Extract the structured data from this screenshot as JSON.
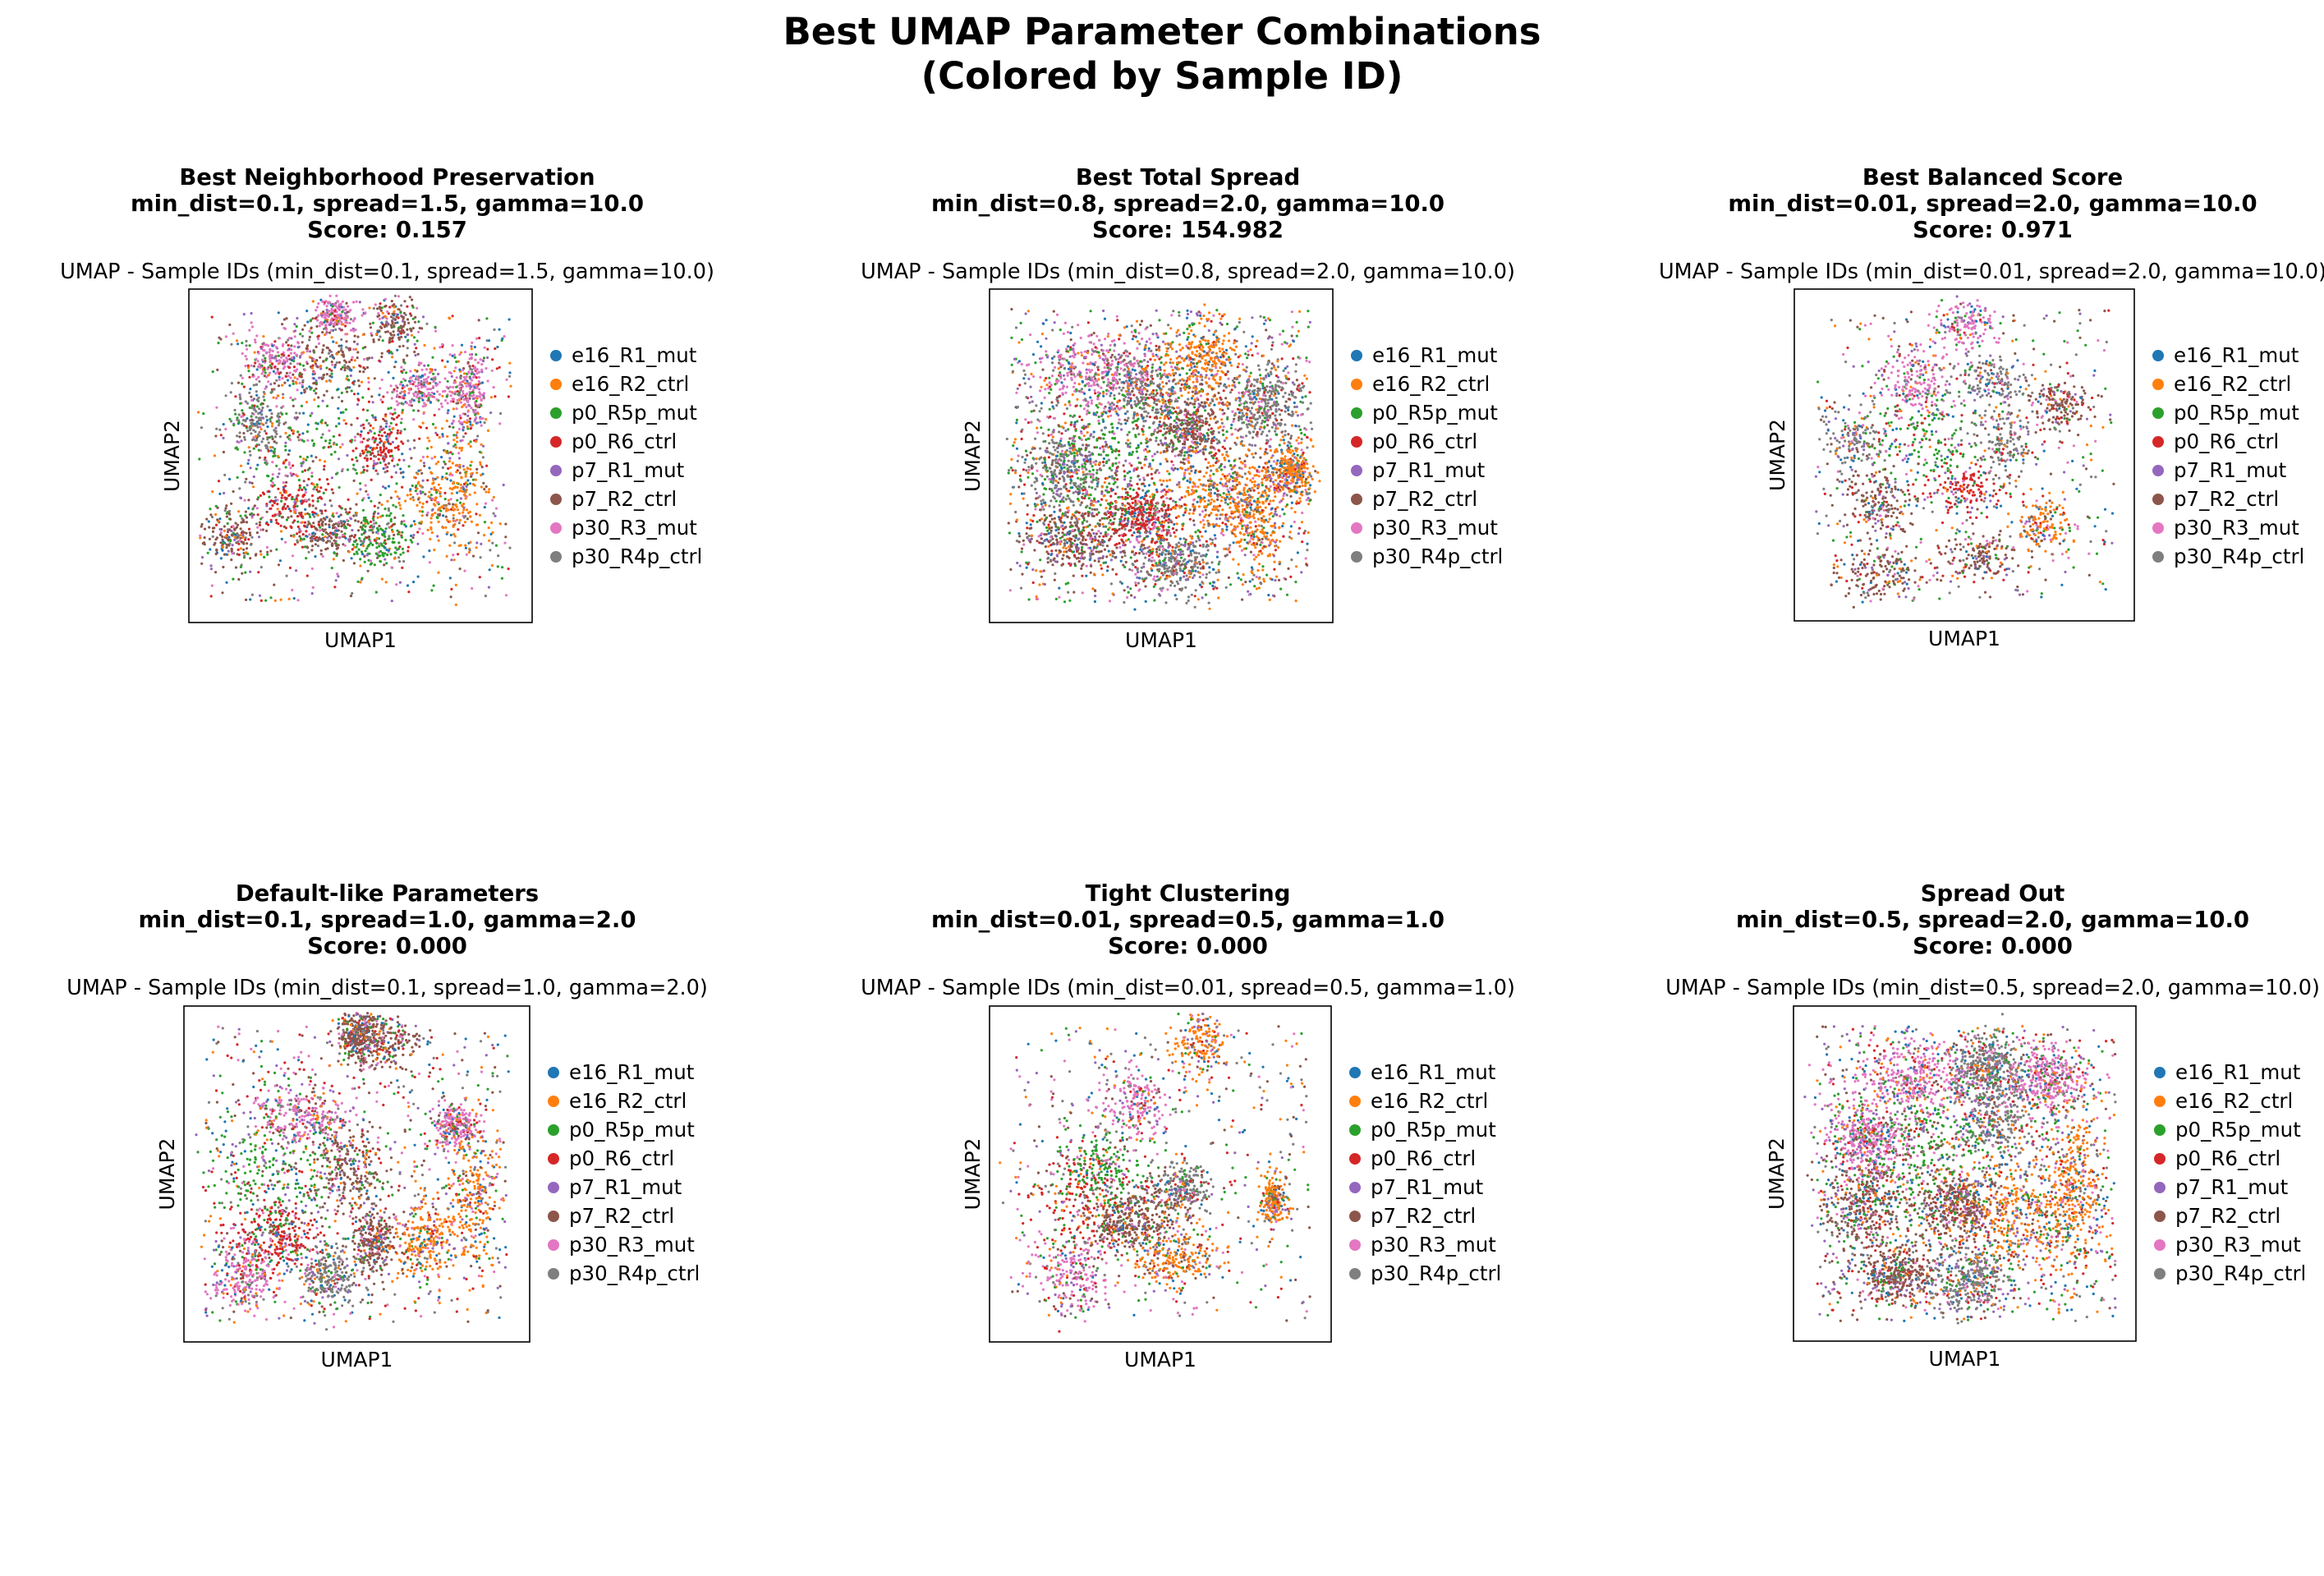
{
  "figure": {
    "title_line1": "Best UMAP Parameter Combinations",
    "title_line2": "(Colored by Sample ID)"
  },
  "legend_entries": [
    {
      "name": "e16_R1_mut",
      "color": "#1f77b4"
    },
    {
      "name": "e16_R2_ctrl",
      "color": "#ff7f0e"
    },
    {
      "name": "p0_R5p_mut",
      "color": "#2ca02c"
    },
    {
      "name": "p0_R6_ctrl",
      "color": "#d62728"
    },
    {
      "name": "p7_R1_mut",
      "color": "#9467bd"
    },
    {
      "name": "p7_R2_ctrl",
      "color": "#8c564b"
    },
    {
      "name": "p30_R3_mut",
      "color": "#e377c2"
    },
    {
      "name": "p30_R4p_ctrl",
      "color": "#7f7f7f"
    }
  ],
  "chart_data": [
    {
      "type": "scatter",
      "header": [
        "Best Neighborhood Preservation",
        "min_dist=0.1, spread=1.5, gamma=10.0",
        "Score: 0.157"
      ],
      "title": "UMAP - Sample IDs (min_dist=0.1, spread=1.5, gamma=10.0)",
      "xlabel": "UMAP1",
      "ylabel": "UMAP2",
      "ticks": "none",
      "grid": false,
      "legend_position": "right",
      "series": [
        "e16_R1_mut",
        "e16_R2_ctrl",
        "p0_R5p_mut",
        "p0_R6_ctrl",
        "p7_R1_mut",
        "p7_R2_ctrl",
        "p30_R3_mut",
        "p30_R4p_ctrl"
      ]
    },
    {
      "type": "scatter",
      "header": [
        "Best Total Spread",
        "min_dist=0.8, spread=2.0, gamma=10.0",
        "Score: 154.982"
      ],
      "title": "UMAP - Sample IDs (min_dist=0.8, spread=2.0, gamma=10.0)",
      "xlabel": "UMAP1",
      "ylabel": "UMAP2",
      "ticks": "none",
      "grid": false,
      "legend_position": "right",
      "series": [
        "e16_R1_mut",
        "e16_R2_ctrl",
        "p0_R5p_mut",
        "p0_R6_ctrl",
        "p7_R1_mut",
        "p7_R2_ctrl",
        "p30_R3_mut",
        "p30_R4p_ctrl"
      ]
    },
    {
      "type": "scatter",
      "header": [
        "Best Balanced Score",
        "min_dist=0.01, spread=2.0, gamma=10.0",
        "Score: 0.971"
      ],
      "title": "UMAP - Sample IDs (min_dist=0.01, spread=2.0, gamma=10.0)",
      "xlabel": "UMAP1",
      "ylabel": "UMAP2",
      "ticks": "none",
      "grid": false,
      "legend_position": "right",
      "series": [
        "e16_R1_mut",
        "e16_R2_ctrl",
        "p0_R5p_mut",
        "p0_R6_ctrl",
        "p7_R1_mut",
        "p7_R2_ctrl",
        "p30_R3_mut",
        "p30_R4p_ctrl"
      ]
    },
    {
      "type": "scatter",
      "header": [
        "Default-like Parameters",
        "min_dist=0.1, spread=1.0, gamma=2.0",
        "Score: 0.000"
      ],
      "title": "UMAP - Sample IDs (min_dist=0.1, spread=1.0, gamma=2.0)",
      "xlabel": "UMAP1",
      "ylabel": "UMAP2",
      "ticks": "none",
      "grid": false,
      "legend_position": "right",
      "series": [
        "e16_R1_mut",
        "e16_R2_ctrl",
        "p0_R5p_mut",
        "p0_R6_ctrl",
        "p7_R1_mut",
        "p7_R2_ctrl",
        "p30_R3_mut",
        "p30_R4p_ctrl"
      ]
    },
    {
      "type": "scatter",
      "header": [
        "Tight Clustering",
        "min_dist=0.01, spread=0.5, gamma=1.0",
        "Score: 0.000"
      ],
      "title": "UMAP - Sample IDs (min_dist=0.01, spread=0.5, gamma=1.0)",
      "xlabel": "UMAP1",
      "ylabel": "UMAP2",
      "ticks": "none",
      "grid": false,
      "legend_position": "right",
      "series": [
        "e16_R1_mut",
        "e16_R2_ctrl",
        "p0_R5p_mut",
        "p0_R6_ctrl",
        "p7_R1_mut",
        "p7_R2_ctrl",
        "p30_R3_mut",
        "p30_R4p_ctrl"
      ]
    },
    {
      "type": "scatter",
      "header": [
        "Spread Out",
        "min_dist=0.5, spread=2.0, gamma=10.0",
        "Score: 0.000"
      ],
      "title": "UMAP - Sample IDs (min_dist=0.5, spread=2.0, gamma=10.0)",
      "xlabel": "UMAP1",
      "ylabel": "UMAP2",
      "ticks": "none",
      "grid": false,
      "legend_position": "right",
      "series": [
        "e16_R1_mut",
        "e16_R2_ctrl",
        "p0_R5p_mut",
        "p0_R6_ctrl",
        "p7_R1_mut",
        "p7_R2_ctrl",
        "p30_R3_mut",
        "p30_R4p_ctrl"
      ]
    }
  ]
}
